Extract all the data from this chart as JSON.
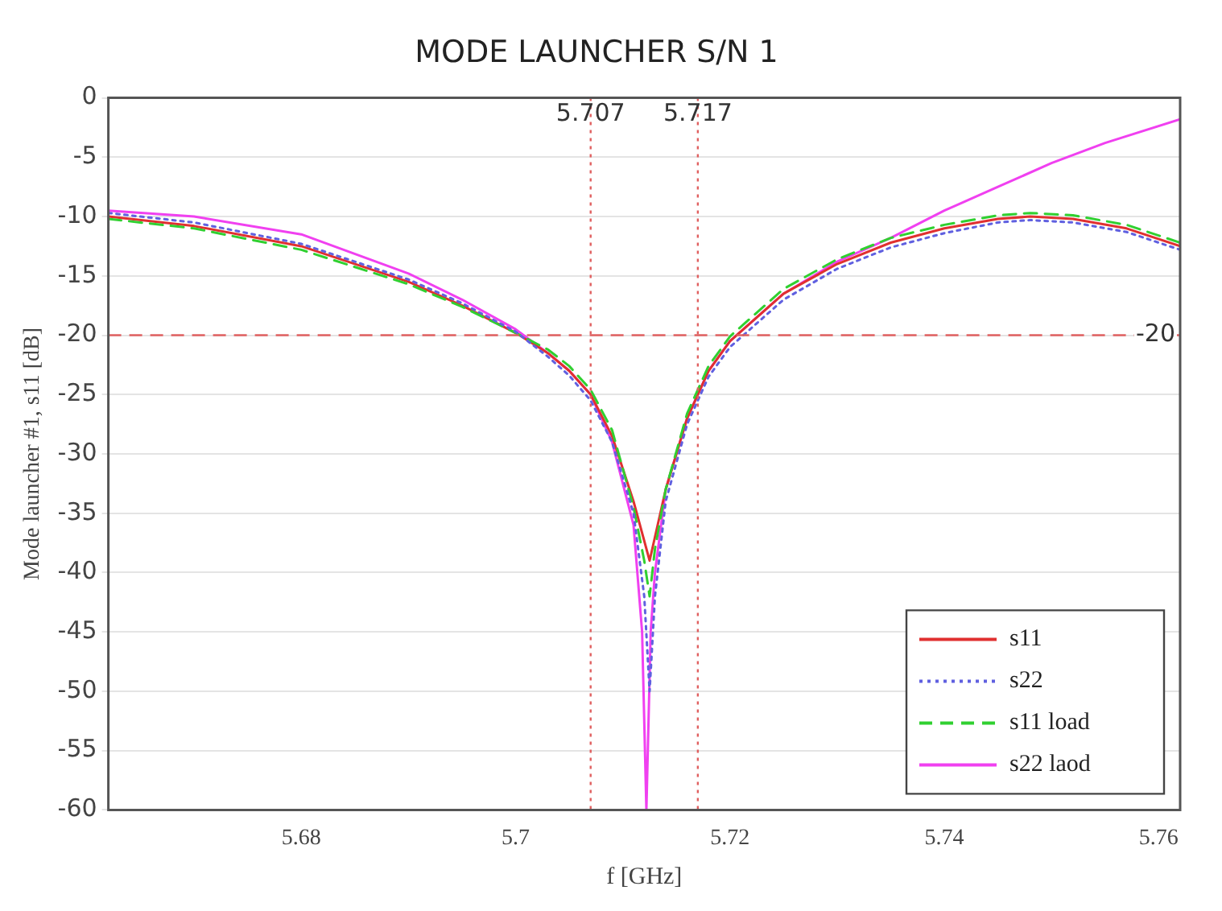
{
  "chart_data": {
    "type": "line",
    "title": "MODE LAUNCHER S/N 1",
    "xlabel": "f [GHz]",
    "ylabel": "Mode launcher #1, s11 [dB]",
    "xlim": [
      5.662,
      5.762
    ],
    "xticks": [
      5.68,
      5.7,
      5.72,
      5.74,
      5.76
    ],
    "ylim": [
      -60,
      0
    ],
    "yticks": [
      -60,
      -55,
      -50,
      -45,
      -40,
      -35,
      -30,
      -25,
      -20,
      -15,
      -10,
      -5,
      0
    ],
    "grid": "y",
    "legend": "bottom right",
    "marker": "none",
    "ref_lines": [
      {
        "axis": "x",
        "value": 5.707,
        "label": "5.707",
        "color": "#e06060",
        "line_style": "dotted"
      },
      {
        "axis": "x",
        "value": 5.717,
        "label": "5.717",
        "color": "#e06060",
        "line_style": "dotted"
      },
      {
        "axis": "y",
        "value": -20,
        "label": "-20",
        "color": "#e06060",
        "line_style": "dashed"
      }
    ],
    "series": [
      {
        "name": "s11",
        "color": "#e03030",
        "line_style": "solid",
        "x": [
          5.662,
          5.67,
          5.68,
          5.69,
          5.695,
          5.7,
          5.703,
          5.705,
          5.707,
          5.709,
          5.711,
          5.7125,
          5.714,
          5.716,
          5.718,
          5.72,
          5.725,
          5.73,
          5.735,
          5.74,
          5.745,
          5.748,
          5.752,
          5.757,
          5.762
        ],
        "values": [
          -10,
          -10.8,
          -12.5,
          -15.5,
          -17.5,
          -19.8,
          -21.5,
          -23,
          -25,
          -28.5,
          -34,
          -39,
          -33,
          -27,
          -23,
          -20.5,
          -16.5,
          -14,
          -12.2,
          -11,
          -10.2,
          -10,
          -10.2,
          -11,
          -12.5
        ]
      },
      {
        "name": "s22",
        "color": "#6060e0",
        "line_style": "dotted",
        "x": [
          5.662,
          5.67,
          5.68,
          5.69,
          5.695,
          5.7,
          5.703,
          5.705,
          5.707,
          5.709,
          5.711,
          5.712,
          5.7125,
          5.713,
          5.714,
          5.716,
          5.718,
          5.72,
          5.725,
          5.73,
          5.735,
          5.74,
          5.745,
          5.748,
          5.752,
          5.757,
          5.762
        ],
        "values": [
          -9.7,
          -10.5,
          -12.3,
          -15.3,
          -17.3,
          -19.7,
          -21.8,
          -23.4,
          -25.5,
          -29,
          -35,
          -42,
          -50,
          -42,
          -34,
          -27.5,
          -23.5,
          -21,
          -17,
          -14.4,
          -12.6,
          -11.4,
          -10.5,
          -10.3,
          -10.5,
          -11.3,
          -12.8
        ]
      },
      {
        "name": "s11 load",
        "color": "#30d030",
        "line_style": "dashed",
        "x": [
          5.662,
          5.67,
          5.68,
          5.69,
          5.695,
          5.7,
          5.703,
          5.705,
          5.707,
          5.709,
          5.711,
          5.712,
          5.7125,
          5.713,
          5.714,
          5.716,
          5.718,
          5.72,
          5.725,
          5.73,
          5.735,
          5.74,
          5.745,
          5.748,
          5.752,
          5.757,
          5.762
        ],
        "values": [
          -10.2,
          -11,
          -12.8,
          -15.7,
          -17.6,
          -19.8,
          -21.2,
          -22.6,
          -24.6,
          -28,
          -34.5,
          -39,
          -42,
          -38,
          -33,
          -26.6,
          -22.6,
          -20.1,
          -16.1,
          -13.6,
          -11.8,
          -10.7,
          -9.9,
          -9.7,
          -9.9,
          -10.7,
          -12.2
        ]
      },
      {
        "name": "s22 laod",
        "color": "#f040f0",
        "line_style": "solid",
        "x": [
          5.662,
          5.67,
          5.68,
          5.69,
          5.695,
          5.7,
          5.703,
          5.705,
          5.707,
          5.709,
          5.711,
          5.7118,
          5.7122,
          5.7126,
          5.713,
          5.714,
          5.716,
          5.718,
          5.72,
          5.725,
          5.73,
          5.735,
          5.74,
          5.745,
          5.75,
          5.755,
          5.762
        ],
        "values": [
          -9.5,
          -10,
          -11.5,
          -14.8,
          -17,
          -19.5,
          -21.5,
          -23,
          -25,
          -29,
          -36,
          -45,
          -60,
          -45,
          -40,
          -33,
          -27,
          -23,
          -20.5,
          -16.5,
          -13.8,
          -11.8,
          -9.5,
          -7.5,
          -5.5,
          -3.8,
          -1.8
        ]
      }
    ]
  }
}
